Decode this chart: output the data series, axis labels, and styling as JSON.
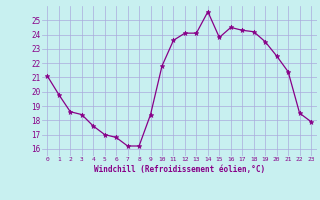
{
  "x": [
    0,
    1,
    2,
    3,
    4,
    5,
    6,
    7,
    8,
    9,
    10,
    11,
    12,
    13,
    14,
    15,
    16,
    17,
    18,
    19,
    20,
    21,
    22,
    23
  ],
  "y": [
    21.1,
    19.8,
    18.6,
    18.4,
    17.6,
    17.0,
    16.8,
    16.2,
    16.2,
    18.4,
    21.8,
    23.6,
    24.1,
    24.1,
    25.6,
    23.8,
    24.5,
    24.3,
    24.2,
    23.5,
    22.5,
    21.4,
    18.5,
    17.9
  ],
  "line_color": "#880088",
  "marker": "*",
  "marker_color": "#880088",
  "bg_color": "#c8f0f0",
  "grid_color": "#aaaadd",
  "xlabel": "Windchill (Refroidissement éolien,°C)",
  "xlabel_color": "#880088",
  "tick_color": "#880088",
  "ylim": [
    15.5,
    26.0
  ],
  "yticks": [
    16,
    17,
    18,
    19,
    20,
    21,
    22,
    23,
    24,
    25
  ],
  "xticks": [
    0,
    1,
    2,
    3,
    4,
    5,
    6,
    7,
    8,
    9,
    10,
    11,
    12,
    13,
    14,
    15,
    16,
    17,
    18,
    19,
    20,
    21,
    22,
    23
  ],
  "xlim": [
    -0.5,
    23.5
  ]
}
